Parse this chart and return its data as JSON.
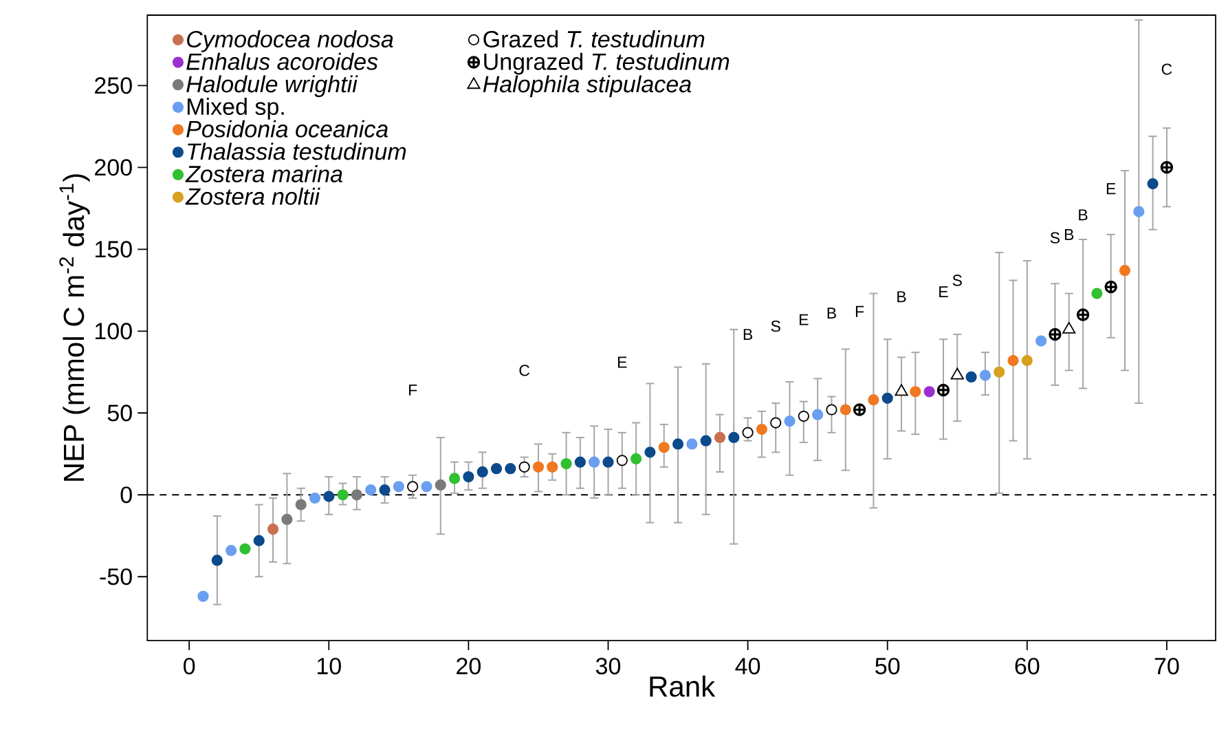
{
  "chart_data": {
    "type": "scatter",
    "xlabel": "Rank",
    "ylabel": "NEP (mmol C m$^{-2}$ day$^{-1}$)",
    "xlim": [
      -3,
      73.5
    ],
    "ylim": [
      -89,
      293
    ],
    "xticks": [
      0,
      10,
      20,
      30,
      40,
      50,
      60,
      70
    ],
    "yticks": [
      -50,
      0,
      50,
      100,
      150,
      200,
      250
    ],
    "legend": "top left",
    "grid": false,
    "ref_lines": [
      {
        "axis": "y",
        "value": 0,
        "line_style": "dashed"
      }
    ],
    "series": [
      {
        "name": "*Cymodocea nodosa*",
        "color": "#c87050",
        "marker": "circle",
        "x": [
          6,
          38
        ],
        "values": [
          -21,
          35
        ],
        "errors": [
          [
            -41,
            -2
          ],
          [
            14,
            49
          ]
        ]
      },
      {
        "name": "*Enhalus acoroides*",
        "color": "#9b30d0",
        "marker": "circle",
        "x": [
          53
        ],
        "values": [
          63
        ],
        "errors": [
          null
        ]
      },
      {
        "name": "*Halodule wrightii*",
        "color": "#7a7a7a",
        "marker": "circle",
        "x": [
          7,
          8,
          12,
          18
        ],
        "values": [
          -15,
          -6,
          0,
          6
        ],
        "errors": [
          [
            -42,
            13
          ],
          [
            -16,
            4
          ],
          [
            -9,
            11
          ],
          [
            -24,
            35
          ]
        ]
      },
      {
        "name": "Mixed sp.",
        "color": "#6a9ef0",
        "marker": "circle",
        "x": [
          1,
          3,
          9,
          13,
          15,
          17,
          29,
          36,
          43,
          45,
          57,
          61,
          68
        ],
        "values": [
          -62,
          -34,
          -2,
          3,
          5,
          5,
          20,
          31,
          45,
          49,
          73,
          94,
          173
        ],
        "errors": [
          null,
          null,
          null,
          null,
          null,
          null,
          [
            -2,
            42
          ],
          null,
          [
            12,
            69
          ],
          [
            21,
            71
          ],
          [
            61,
            87
          ],
          null,
          [
            56,
            290
          ]
        ]
      },
      {
        "name": "*Posidonia oceanica*",
        "color": "#f07820",
        "marker": "circle",
        "x": [
          25,
          26,
          34,
          41,
          47,
          49,
          52,
          59,
          67
        ],
        "values": [
          17,
          17,
          29,
          40,
          52,
          58,
          63,
          82,
          137
        ],
        "errors": [
          [
            2,
            31
          ],
          [
            9,
            25
          ],
          [
            17,
            43
          ],
          [
            23,
            51
          ],
          [
            15,
            89
          ],
          [
            -8,
            123
          ],
          [
            37,
            87
          ],
          [
            33,
            131
          ],
          [
            76,
            198
          ]
        ]
      },
      {
        "name": "*Thalassia testudinum*",
        "color": "#0c4a8c",
        "marker": "circle",
        "x": [
          2,
          5,
          10,
          14,
          20,
          21,
          22,
          23,
          28,
          30,
          33,
          35,
          37,
          39,
          50,
          56,
          69
        ],
        "values": [
          -40,
          -28,
          -1,
          3,
          11,
          14,
          16,
          16,
          20,
          20,
          26,
          31,
          33,
          35,
          59,
          72,
          190
        ],
        "errors": [
          [
            -67,
            -13
          ],
          [
            -50,
            -6
          ],
          [
            -12,
            11
          ],
          [
            -5,
            11
          ],
          [
            3,
            20
          ],
          [
            4,
            26
          ],
          null,
          null,
          [
            4,
            35
          ],
          [
            0,
            40
          ],
          [
            -17,
            68
          ],
          [
            -17,
            78
          ],
          [
            -12,
            80
          ],
          [
            -30,
            101
          ],
          [
            22,
            95
          ],
          null,
          [
            162,
            219
          ]
        ]
      },
      {
        "name": "*Zostera marina*",
        "color": "#30c030",
        "marker": "circle",
        "x": [
          4,
          11,
          19,
          27,
          32,
          65
        ],
        "values": [
          -33,
          0,
          10,
          19,
          22,
          123
        ],
        "errors": [
          null,
          [
            -6,
            7
          ],
          [
            1,
            20
          ],
          [
            0,
            38
          ],
          [
            0,
            44
          ],
          null
        ]
      },
      {
        "name": "*Zostera noltii*",
        "color": "#d8a020",
        "marker": "circle",
        "x": [
          58,
          60
        ],
        "values": [
          75,
          82
        ],
        "errors": [
          [
            1,
            148
          ],
          [
            22,
            143
          ]
        ]
      },
      {
        "name": "Grazed *T. testudinum*",
        "color": "#ffffff",
        "marker": "circle",
        "x": [
          16,
          24,
          31,
          40,
          42,
          44,
          46
        ],
        "values": [
          5,
          17,
          21,
          38,
          44,
          48,
          52
        ],
        "errors": [
          [
            -2,
            12
          ],
          [
            11,
            23
          ],
          [
            4,
            38
          ],
          [
            33,
            47
          ],
          [
            26,
            56
          ],
          [
            32,
            57
          ],
          [
            38,
            60
          ]
        ]
      },
      {
        "name": "Ungrazed *T. testudinum*",
        "color": "#000000",
        "marker": "cross",
        "x": [
          48,
          54,
          62,
          64,
          66,
          70
        ],
        "values": [
          52,
          64,
          98,
          110,
          127,
          200
        ],
        "errors": [
          null,
          [
            34,
            95
          ],
          [
            67,
            129
          ],
          [
            65,
            156
          ],
          [
            96,
            159
          ],
          [
            176,
            224
          ]
        ]
      },
      {
        "name": "*Halophila stipulacea*",
        "color": "#000000",
        "marker": "triangle",
        "x": [
          51,
          55,
          63
        ],
        "values": [
          63,
          73,
          101
        ],
        "errors": [
          [
            39,
            84
          ],
          [
            45,
            98
          ],
          [
            76,
            123
          ]
        ]
      }
    ],
    "annotations": [
      "F",
      "C",
      "E",
      "B",
      "S",
      "E",
      "B",
      "F",
      "B",
      "E",
      "S",
      "S",
      "B",
      "B",
      "E",
      "C"
    ]
  }
}
